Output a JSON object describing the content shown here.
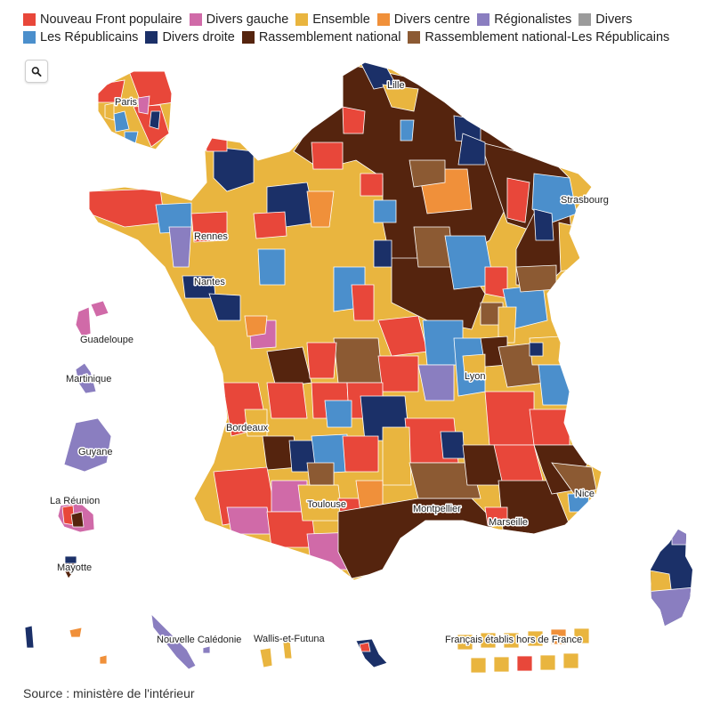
{
  "colors": {
    "Nouveau Front populaire": "#e8473a",
    "Divers gauche": "#d06aa8",
    "Ensemble": "#e9b53f",
    "Divers centre": "#f0903a",
    "Régionalistes": "#8a7ec0",
    "Divers": "#9b9b9b",
    "Les Républicains": "#4b8fcc",
    "Divers droite": "#1b3068",
    "Rassemblement national": "#55240e",
    "Rassemblement national-Les Républicains": "#8c5a33"
  },
  "legend": [
    {
      "label": "Nouveau Front populaire",
      "color": "#e8473a"
    },
    {
      "label": "Divers gauche",
      "color": "#d06aa8"
    },
    {
      "label": "Ensemble",
      "color": "#e9b53f"
    },
    {
      "label": "Divers centre",
      "color": "#f0903a"
    },
    {
      "label": "Régionalistes",
      "color": "#8a7ec0"
    },
    {
      "label": "Divers",
      "color": "#9b9b9b"
    },
    {
      "label": "Les Républicains",
      "color": "#4b8fcc"
    },
    {
      "label": "Divers droite",
      "color": "#1b3068"
    },
    {
      "label": "Rassemblement national",
      "color": "#55240e"
    },
    {
      "label": "Rassemblement national-Les Républicains",
      "color": "#8c5a33"
    }
  ],
  "zoom_icon": "search-icon",
  "labels": {
    "paris": "Paris",
    "lille": "Lille",
    "strasbourg": "Strasbourg",
    "rennes": "Rennes",
    "nantes": "Nantes",
    "lyon": "Lyon",
    "bordeaux": "Bordeaux",
    "toulouse": "Toulouse",
    "montpellier": "Montpellier",
    "marseille": "Marseille",
    "nice": "Nice",
    "guadeloupe": "Guadeloupe",
    "martinique": "Martinique",
    "guyane": "Guyane",
    "la_reunion": "La Réunion",
    "mayotte": "Mayotte",
    "nouvelle_caledonie": "Nouvelle Calédonie",
    "wallis_et_futuna": "Wallis-et-Futuna",
    "francais_etranger": "Français établis hors de France"
  },
  "source": "Source : ministère de l'intérieur"
}
